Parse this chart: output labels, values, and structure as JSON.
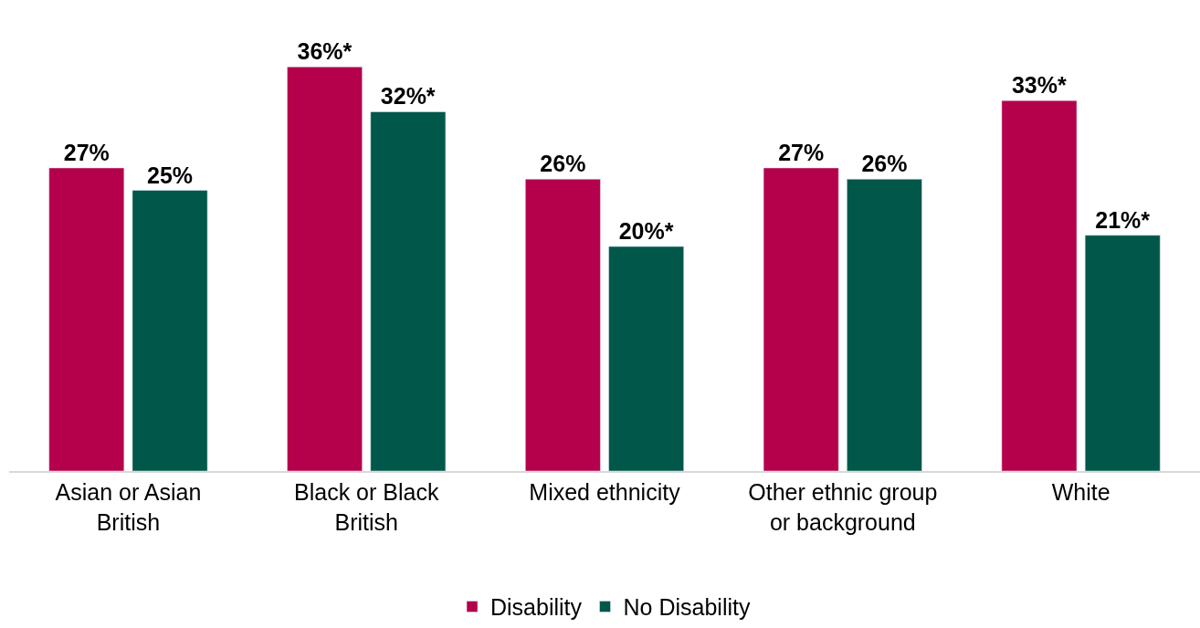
{
  "chart_data": {
    "type": "bar",
    "categories": [
      "Asian or Asian British",
      "Black or Black British",
      "Mixed ethnicity",
      "Other ethnic group or background",
      "White"
    ],
    "series": [
      {
        "name": "Disability",
        "color": "#b5004b",
        "values": [
          27,
          36,
          26,
          27,
          33
        ],
        "value_labels": [
          "27%",
          "36%*",
          "26%",
          "27%",
          "33%*"
        ]
      },
      {
        "name": "No Disability",
        "color": "#00574a",
        "values": [
          25,
          32,
          20,
          26,
          21
        ],
        "value_labels": [
          "25%",
          "32%*",
          "20%*",
          "26%",
          "21%*"
        ]
      }
    ],
    "tick_labels": "x",
    "legend": "bottom"
  }
}
